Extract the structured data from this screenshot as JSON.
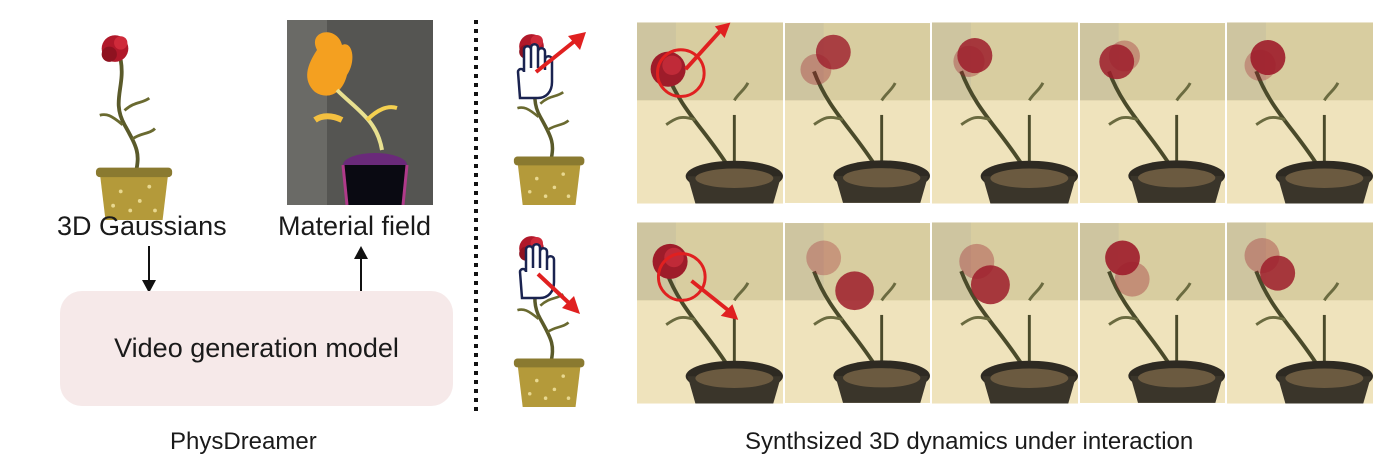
{
  "left": {
    "gaussians_label": "3D Gaussians",
    "material_label": "Material field",
    "model_label": "Video generation model",
    "caption": "PhysDreamer"
  },
  "right": {
    "caption": "Synthsized 3D dynamics under interaction"
  },
  "colors": {
    "model_box": "#f6e9e9",
    "arrow_red": "#e02020",
    "rose": "#b0182a",
    "material_orange": "#f4a020",
    "wall": "#d9cba0"
  },
  "icons": [
    "hand-icon",
    "push-arrow-icon",
    "down-arrow-icon",
    "up-arrow-icon"
  ]
}
